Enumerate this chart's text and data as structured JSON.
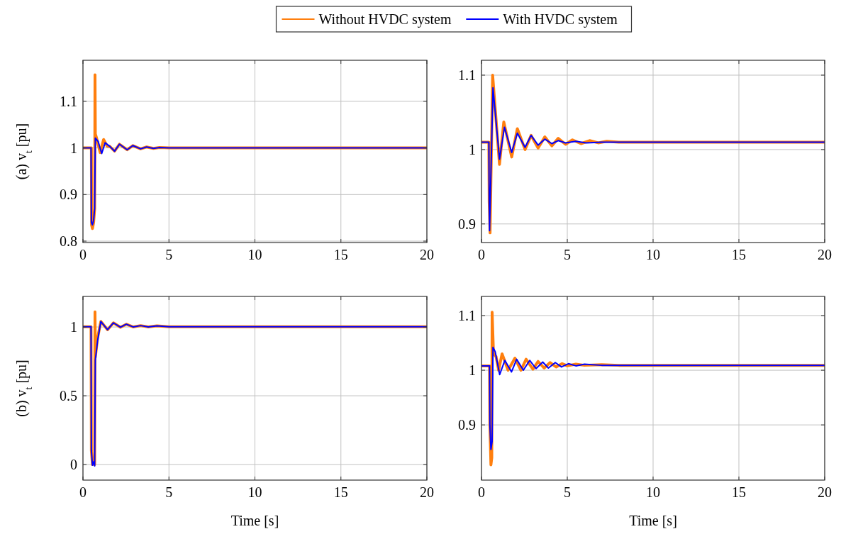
{
  "chart_data": [
    {
      "type": "line",
      "ylabel": "(a) v$_{t}$ [pu]",
      "xlim": [
        0,
        20
      ],
      "xticks": [
        0,
        5,
        10,
        15,
        20
      ],
      "ylim": [
        0.797,
        1.188
      ],
      "yticks": [
        0.8,
        0.9,
        1,
        1.1
      ],
      "grid": true,
      "legend": "top",
      "series": [
        {
          "name": "Without HVDC system",
          "color": "#ff7f0e",
          "x": [
            0,
            0.49,
            0.5,
            0.55,
            0.62,
            0.68,
            0.7,
            0.72,
            0.8,
            1.0,
            1.2,
            1.4,
            1.57,
            1.84,
            2.12,
            2.57,
            2.9,
            3.35,
            3.7,
            4.1,
            4.45,
            5,
            10,
            20
          ],
          "values": [
            1,
            1,
            0.835,
            0.827,
            0.84,
            0.87,
            1.157,
            1.03,
            1.02,
            0.99,
            1.018,
            1.004,
            1.003,
            0.993,
            1.008,
            0.996,
            1.005,
            0.998,
            1.002,
            0.999,
            1.001,
            1,
            1,
            1
          ]
        },
        {
          "name": "With HVDC system",
          "color": "#0000ff",
          "x": [
            0,
            0.47,
            0.49,
            0.55,
            0.62,
            0.68,
            0.72,
            0.88,
            1.09,
            1.29,
            1.57,
            1.84,
            2.12,
            2.57,
            2.9,
            3.35,
            3.7,
            4.1,
            4.45,
            5,
            10,
            20
          ],
          "values": [
            1,
            1,
            0.84,
            0.835,
            0.845,
            0.87,
            1.021,
            1.014,
            0.988,
            1.011,
            1.003,
            0.993,
            1.008,
            0.996,
            1.005,
            0.998,
            1.002,
            0.999,
            1.001,
            1,
            1,
            1
          ]
        }
      ]
    },
    {
      "type": "line",
      "xlim": [
        0,
        20
      ],
      "xticks": [
        0,
        5,
        10,
        15,
        20
      ],
      "ylim": [
        0.875,
        1.12
      ],
      "yticks": [
        0.9,
        1,
        1.1
      ],
      "grid": true,
      "series": [
        {
          "color": "#ff7f0e",
          "x": [
            0,
            0.43,
            0.45,
            0.5,
            0.65,
            1.05,
            1.3,
            1.76,
            2.09,
            2.54,
            2.89,
            3.3,
            3.69,
            4.1,
            4.47,
            4.9,
            5.3,
            5.8,
            6.3,
            6.8,
            7.3,
            8,
            9,
            10,
            20
          ],
          "values": [
            1.01,
            1.01,
            0.93,
            0.888,
            1.1,
            0.98,
            1.037,
            0.99,
            1.028,
            1.0,
            1.019,
            1.002,
            1.017,
            1.005,
            1.015,
            1.007,
            1.013,
            1.008,
            1.012,
            1.009,
            1.011,
            1.01,
            1.01,
            1.01,
            1.01
          ]
        },
        {
          "color": "#0000ff",
          "x": [
            0,
            0.43,
            0.45,
            0.47,
            0.67,
            1.05,
            1.34,
            1.76,
            2.09,
            2.54,
            2.89,
            3.3,
            3.69,
            4.1,
            4.47,
            4.9,
            5.5,
            6.1,
            7,
            8,
            10,
            20
          ],
          "values": [
            1.01,
            1.01,
            0.93,
            0.891,
            1.083,
            0.987,
            1.03,
            0.996,
            1.022,
            1.003,
            1.019,
            1.006,
            1.014,
            1.008,
            1.012,
            1.009,
            1.011,
            1.009,
            1.01,
            1.01,
            1.01,
            1.01
          ]
        }
      ]
    },
    {
      "type": "line",
      "ylabel": "(b) v$_{t}$ [pu]",
      "xlabel": "Time [s]",
      "xlim": [
        0,
        20
      ],
      "xticks": [
        0,
        5,
        10,
        15,
        20
      ],
      "ylim": [
        -0.113,
        1.222
      ],
      "yticks": [
        0,
        0.5,
        1
      ],
      "grid": true,
      "series": [
        {
          "color": "#ff7f0e",
          "x": [
            0,
            0.47,
            0.49,
            0.55,
            0.62,
            0.68,
            0.7,
            0.72,
            0.85,
            1.04,
            1.43,
            1.77,
            2.18,
            2.52,
            2.93,
            3.35,
            3.8,
            4.3,
            5,
            20
          ],
          "values": [
            1.002,
            1.002,
            0.1,
            0.0,
            0.03,
            0.0,
            1.11,
            0.78,
            0.92,
            1.04,
            0.98,
            1.03,
            0.998,
            1.02,
            1.0,
            1.01,
            1.0,
            1.008,
            1.002,
            1.002
          ]
        },
        {
          "color": "#0000ff",
          "x": [
            0,
            0.47,
            0.49,
            0.55,
            0.62,
            0.68,
            0.72,
            0.85,
            1.04,
            1.43,
            1.77,
            2.18,
            2.52,
            2.93,
            3.35,
            3.8,
            4.3,
            5,
            20
          ],
          "values": [
            1.002,
            1.002,
            0.1,
            -0.005,
            0.02,
            -0.01,
            0.76,
            0.9,
            1.04,
            0.98,
            1.03,
            0.998,
            1.02,
            1.0,
            1.01,
            1.0,
            1.008,
            1.002,
            1.002
          ]
        }
      ]
    },
    {
      "type": "line",
      "xlabel": "Time [s]",
      "xlim": [
        0,
        20
      ],
      "xticks": [
        0,
        5,
        10,
        15,
        20
      ],
      "ylim": [
        0.799,
        1.135
      ],
      "yticks": [
        0.9,
        1,
        1.1
      ],
      "grid": true,
      "series": [
        {
          "color": "#ff7f0e",
          "x": [
            0,
            0.47,
            0.49,
            0.55,
            0.6,
            0.62,
            0.7,
            0.85,
            1.0,
            1.2,
            1.55,
            1.95,
            2.3,
            2.6,
            3.0,
            3.3,
            3.65,
            4.0,
            4.35,
            4.7,
            5.0,
            5.5,
            6,
            7,
            8,
            20
          ],
          "values": [
            1.008,
            1.008,
            0.9,
            0.827,
            0.84,
            1.106,
            1.03,
            1.025,
            1.0,
            1.03,
            1.0,
            1.022,
            1.0,
            1.02,
            1.002,
            1.016,
            1.004,
            1.014,
            1.006,
            1.012,
            1.008,
            1.011,
            1.009,
            1.01,
            1.009,
            1.009
          ]
        },
        {
          "color": "#0000ff",
          "x": [
            0,
            0.47,
            0.49,
            0.55,
            0.62,
            0.67,
            0.8,
            1.06,
            1.36,
            1.75,
            2.05,
            2.44,
            2.81,
            3.18,
            3.57,
            3.9,
            4.3,
            4.66,
            5.07,
            5.5,
            6,
            7,
            8,
            20
          ],
          "values": [
            1.008,
            1.008,
            0.9,
            0.855,
            0.87,
            1.042,
            1.034,
            0.992,
            1.018,
            0.997,
            1.02,
            1.0,
            1.018,
            1.003,
            1.015,
            1.004,
            1.014,
            1.006,
            1.012,
            1.008,
            1.011,
            1.009,
            1.009,
            1.009
          ]
        }
      ]
    }
  ]
}
